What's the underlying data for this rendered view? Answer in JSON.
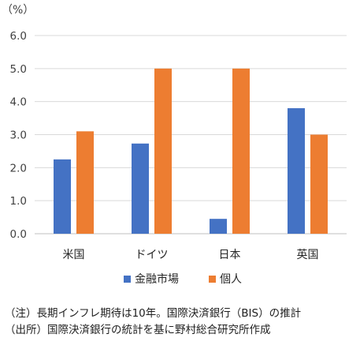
{
  "chart_data": {
    "type": "bar",
    "unit_label": "（%）",
    "categories": [
      "米国",
      "ドイツ",
      "日本",
      "英国"
    ],
    "series": [
      {
        "name": "金融市場",
        "values": [
          2.25,
          2.73,
          0.45,
          3.8
        ]
      },
      {
        "name": "個人",
        "values": [
          3.1,
          5.0,
          5.0,
          3.0
        ]
      }
    ],
    "ylim": [
      0,
      6
    ],
    "yticks": [
      "0.0",
      "1.0",
      "2.0",
      "3.0",
      "4.0",
      "5.0",
      "6.0"
    ],
    "grid": true,
    "legend_position": "bottom",
    "colors": [
      "#4472c4",
      "#ed7d31"
    ]
  },
  "notes": {
    "note1": "（注）長期インフレ期待は10年。国際決済銀行（BIS）の推計",
    "note2": "（出所）国際決済銀行の統計を基に野村総合研究所作成"
  }
}
